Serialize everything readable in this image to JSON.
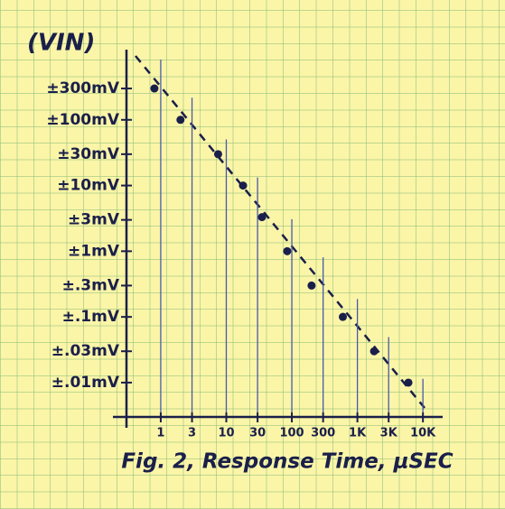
{
  "chart_data": {
    "type": "scatter",
    "ylabel": "(VIN)",
    "xlabel": "Fig. 2, Response Time, μSEC",
    "log_x": true,
    "log_y": true,
    "color": "#1a1f4a",
    "grid_color": "#4a5aa8",
    "xlim": [
      0.3,
      20000
    ],
    "ylim": [
      0.003,
      1000
    ],
    "xticks": [
      1,
      3,
      10,
      30,
      100,
      300,
      {
        "value": 1000,
        "label": "1K"
      },
      {
        "value": 3000,
        "label": "3K"
      },
      {
        "value": 10000,
        "label": "10K"
      }
    ],
    "yticks": [
      {
        "value": 0.01,
        "label": "±.01mV"
      },
      {
        "value": 0.03,
        "label": "±.03mV"
      },
      {
        "value": 0.1,
        "label": "±.1mV"
      },
      {
        "value": 0.3,
        "label": "±.3mV"
      },
      {
        "value": 1,
        "label": "±1mV"
      },
      {
        "value": 3,
        "label": "±3mV"
      },
      {
        "value": 10,
        "label": "±10mV"
      },
      {
        "value": 30,
        "label": "±30mV"
      },
      {
        "value": 100,
        "label": "±100mV"
      },
      {
        "value": 300,
        "label": "±300mV"
      }
    ],
    "x": [
      0.8,
      2,
      7.5,
      18,
      35,
      85,
      200,
      600,
      1800,
      6000
    ],
    "values": [
      300,
      100,
      30,
      10,
      3.3,
      1,
      0.3,
      0.1,
      0.03,
      0.01
    ]
  }
}
